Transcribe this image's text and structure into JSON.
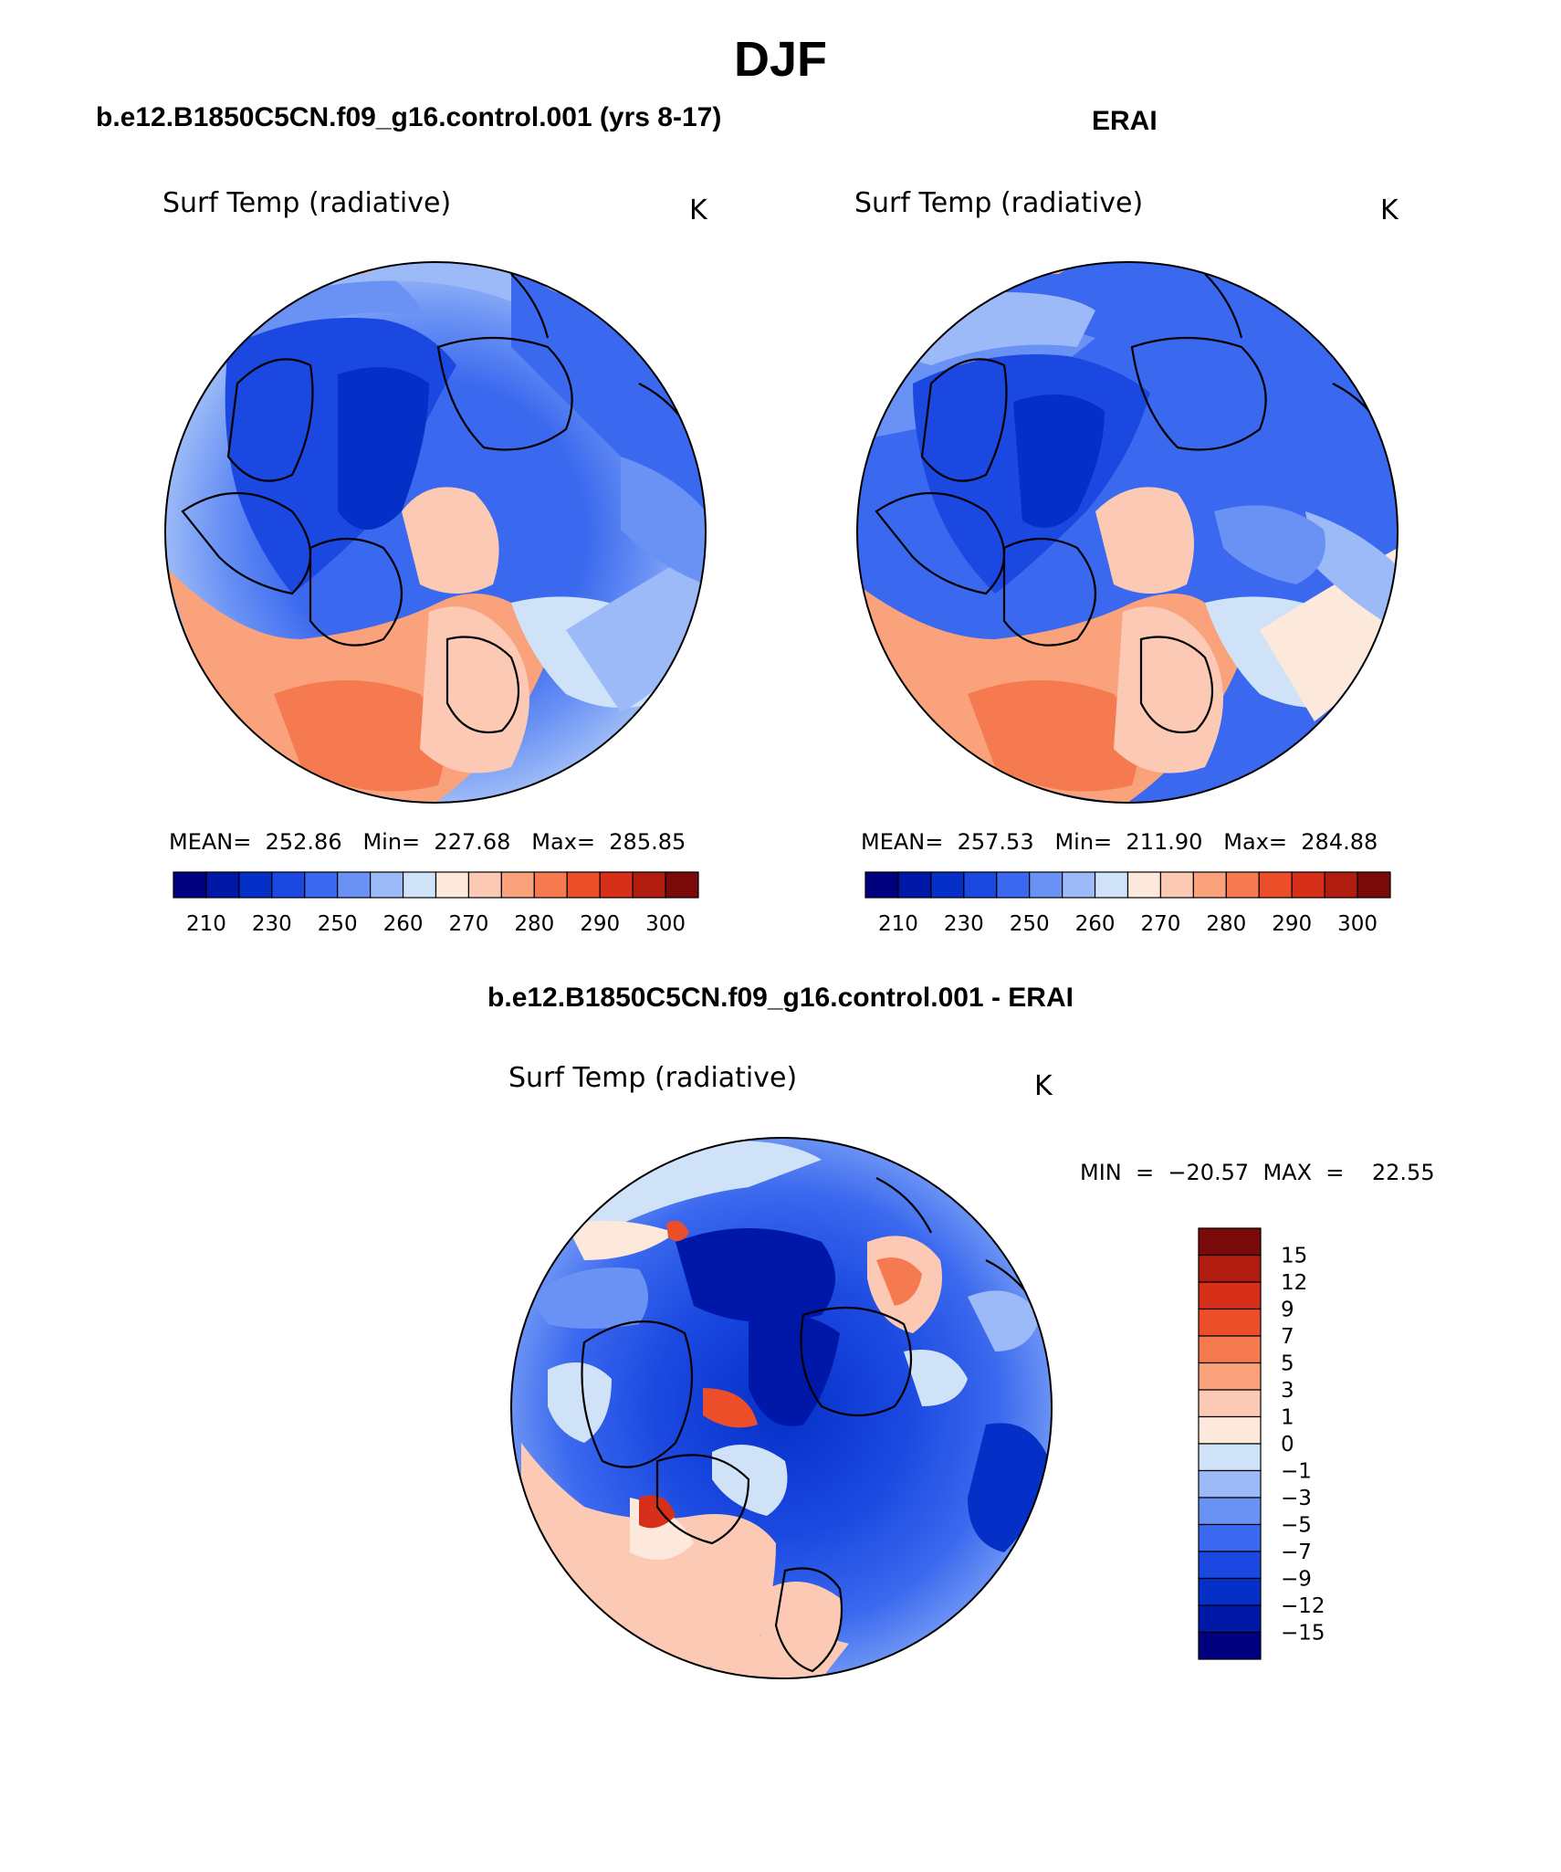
{
  "page": {
    "title": "DJF",
    "panel_left_header": "b.e12.B1850C5CN.f09_g16.control.001 (yrs 8-17)",
    "panel_right_header": "ERAI",
    "diff_header": "b.e12.B1850C5CN.f09_g16.control.001 - ERAI"
  },
  "panels": [
    {
      "field": "Surf Temp (radiative)",
      "units": "K",
      "stats_text": "MEAN=  252.86   Min=  227.68   Max=  285.85"
    },
    {
      "field": "Surf Temp (radiative)",
      "units": "K",
      "stats_text": "MEAN=  257.53   Min=  211.90   Max=  284.88"
    }
  ],
  "diff_panel": {
    "field": "Surf Temp (radiative)",
    "units": "K",
    "stats_text": "MIN  =  −20.57  MAX  =    22.55"
  },
  "abs_colorbar": {
    "colors": [
      "#00007f",
      "#0018a8",
      "#0530c8",
      "#1a48e0",
      "#3a68ee",
      "#6a92f4",
      "#9bbaf7",
      "#cfe2f7",
      "#fde8dc",
      "#fccab4",
      "#f9a27c",
      "#f57a50",
      "#ed4e2a",
      "#d7301a",
      "#b01c10",
      "#7a0a0a"
    ],
    "ticks": [
      "210",
      "230",
      "250",
      "260",
      "270",
      "280",
      "290",
      "300"
    ]
  },
  "diff_colorbar": {
    "colors_top_to_bottom": [
      "#7a0a0a",
      "#b01c10",
      "#d7301a",
      "#ed4e2a",
      "#f57a50",
      "#f9a27c",
      "#fccab4",
      "#fde8dc",
      "#cfe2f7",
      "#9bbaf7",
      "#6a92f4",
      "#3a68ee",
      "#1a48e0",
      "#0530c8",
      "#0018a8",
      "#00007f"
    ],
    "ticks": [
      "15",
      "12",
      "9",
      "7",
      "5",
      "3",
      "1",
      "0",
      "−1",
      "−3",
      "−5",
      "−7",
      "−9",
      "−12",
      "−15"
    ]
  }
}
